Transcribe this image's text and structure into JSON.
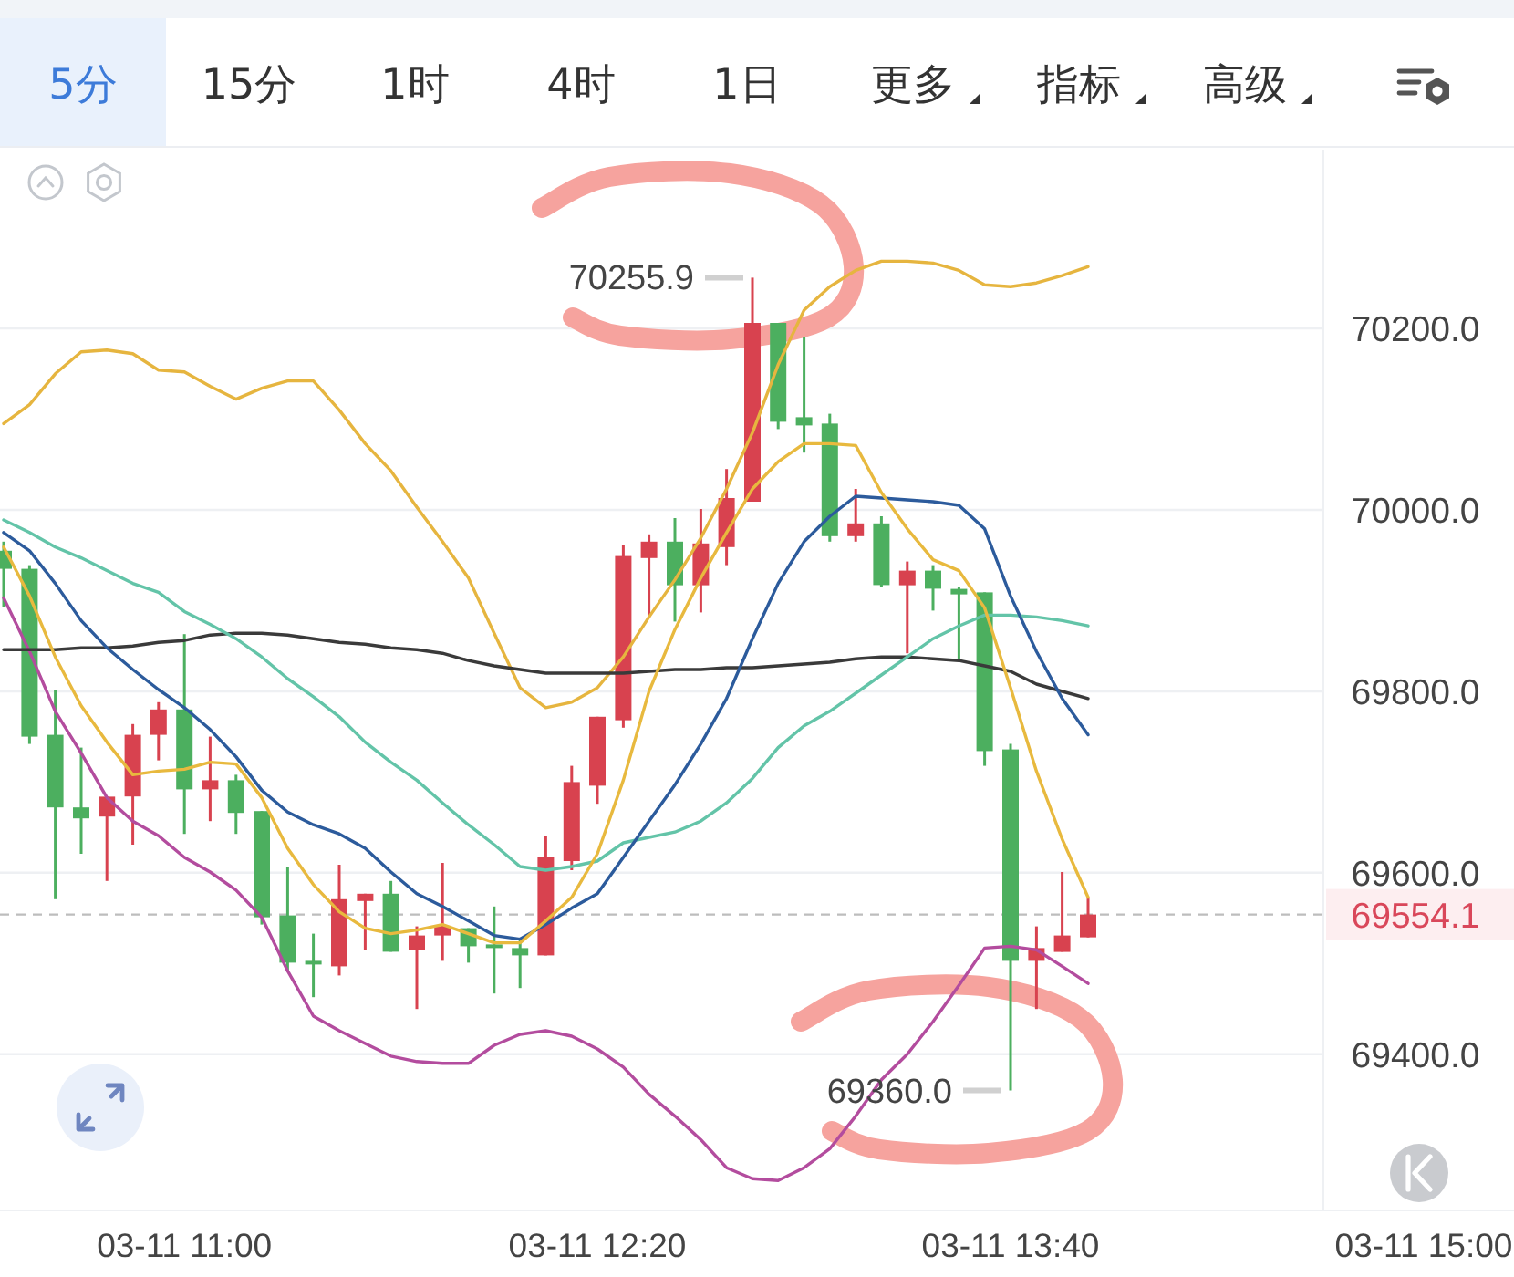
{
  "chart_data": [
    {
      "type": "other",
      "annotations": [
        "5分",
        "15分",
        "1时",
        "4时",
        "1日",
        "更多",
        "指标",
        "高级"
      ]
    },
    {
      "type": "candlestick",
      "categories": [
        null,
        null,
        null,
        null,
        null,
        null,
        null,
        "03-11 11:00",
        null,
        null,
        null,
        null,
        null,
        null,
        null,
        null,
        null,
        null,
        null,
        null,
        null,
        null,
        null,
        "03-11 12:20",
        null,
        null,
        null,
        null,
        null,
        null,
        null,
        null,
        null,
        null,
        null,
        null,
        null,
        null,
        null,
        "03-11 13:40",
        null,
        null,
        null,
        null,
        null,
        null,
        null,
        null,
        null,
        null,
        null,
        null,
        null,
        null,
        null,
        "03-11 15:00",
        null,
        null,
        null
      ],
      "ohlc": [
        [
          69955,
          69965,
          69893,
          69935
        ],
        [
          69935,
          69939,
          69742,
          69750
        ],
        [
          69752,
          69802,
          69571,
          69672
        ],
        [
          69672,
          69738,
          69621,
          69660
        ],
        [
          69662,
          69684,
          69591,
          69684
        ],
        [
          69684,
          69764,
          69631,
          69752
        ],
        [
          69752,
          69788,
          69724,
          69780
        ],
        [
          69780,
          69863,
          69643,
          69692
        ],
        [
          69692,
          69750,
          69657,
          69702
        ],
        [
          69702,
          69708,
          69643,
          69666
        ],
        [
          69668,
          69668,
          69543,
          69551
        ],
        [
          69553,
          69607,
          69491,
          69501
        ],
        [
          69503,
          69533,
          69463,
          69499
        ],
        [
          69497,
          69609,
          69487,
          69571
        ],
        [
          69569,
          69577,
          69515,
          69577
        ],
        [
          69577,
          69591,
          69513,
          69513
        ],
        [
          69515,
          69541,
          69450,
          69531
        ],
        [
          69531,
          69611,
          69503,
          69541
        ],
        [
          69539,
          69539,
          69501,
          69519
        ],
        [
          69521,
          69563,
          69467,
          69517
        ],
        [
          69517,
          69527,
          69473,
          69509
        ],
        [
          69509,
          69641,
          69509,
          69617
        ],
        [
          69613,
          69718,
          69603,
          69700
        ],
        [
          69696,
          69772,
          69676,
          69772
        ],
        [
          69768,
          69961,
          69760,
          69949
        ],
        [
          69947,
          69973,
          69881,
          69965
        ],
        [
          69965,
          69991,
          69877,
          69917
        ],
        [
          69917,
          70001,
          69887,
          69963
        ],
        [
          69959,
          70045,
          69939,
          70013
        ],
        [
          70009,
          70255.9,
          70009,
          70206
        ],
        [
          70206,
          70206,
          70089,
          70097
        ],
        [
          70102,
          70190,
          70063,
          70093
        ],
        [
          70095,
          70106,
          69965,
          69971
        ],
        [
          69971,
          70023,
          69965,
          69985
        ],
        [
          69985,
          69993,
          69915,
          69917
        ],
        [
          69917,
          69943,
          69842,
          69933
        ],
        [
          69933,
          69939,
          69889,
          69913
        ],
        [
          69913,
          69915,
          69834,
          69907
        ],
        [
          69909,
          69909,
          69718,
          69734
        ],
        [
          69736,
          69742,
          69360.0,
          69503
        ],
        [
          69503,
          69541,
          69450,
          69517
        ],
        [
          69513,
          69601,
          69513,
          69531
        ],
        [
          69529,
          69573,
          69529,
          69554.1
        ],
        null,
        null,
        null,
        null,
        null,
        null,
        null,
        null,
        null,
        null,
        null,
        null,
        null,
        null,
        null,
        null
      ],
      "value_labels": [
        null,
        null,
        null,
        null,
        null,
        null,
        null,
        null,
        null,
        null,
        null,
        null,
        null,
        null,
        null,
        null,
        null,
        null,
        null,
        null,
        null,
        null,
        null,
        null,
        null,
        null,
        null,
        null,
        null,
        "70255.9",
        null,
        null,
        null,
        null,
        null,
        null,
        null,
        null,
        null,
        "69360.0",
        null,
        null,
        null,
        null,
        null,
        null,
        null,
        null,
        null,
        null,
        null,
        null,
        null,
        null,
        null,
        null,
        null,
        null,
        null
      ],
      "colors": [
        "#4caf5f",
        "#4caf5f",
        "#4caf5f",
        "#4caf5f",
        "#d8424f",
        "#d8424f",
        "#d8424f",
        "#4caf5f",
        "#d8424f",
        "#4caf5f",
        "#4caf5f",
        "#4caf5f",
        "#4caf5f",
        "#d8424f",
        "#d8424f",
        "#4caf5f",
        "#d8424f",
        "#d8424f",
        "#4caf5f",
        "#4caf5f",
        "#4caf5f",
        "#d8424f",
        "#d8424f",
        "#d8424f",
        "#d8424f",
        "#d8424f",
        "#4caf5f",
        "#d8424f",
        "#d8424f",
        "#d8424f",
        "#4caf5f",
        "#4caf5f",
        "#4caf5f",
        "#d8424f",
        "#4caf5f",
        "#d8424f",
        "#4caf5f",
        "#4caf5f",
        "#4caf5f",
        "#4caf5f",
        "#d8424f",
        "#d8424f",
        "#d8424f",
        null,
        null,
        null,
        null,
        null,
        null,
        null,
        null,
        null,
        null,
        null,
        null,
        null,
        null,
        null,
        null
      ],
      "series": [
        {
          "type": "line",
          "color": "#e6b53f",
          "values": [
            70095,
            70116,
            70150,
            70174,
            70176,
            70172,
            70154,
            70152,
            70136,
            70122,
            70134,
            70142,
            70142,
            70110,
            70073,
            70043,
            70003,
            69965,
            69925,
            69864,
            69804,
            69782,
            69788,
            69804,
            69838,
            69882,
            69923,
            69969,
            70023,
            70085,
            70160,
            70220,
            70246,
            70264,
            70274,
            70274,
            70272,
            70264,
            70248,
            70246,
            70250,
            70258,
            70268,
            null,
            null,
            null,
            null,
            null,
            null,
            null,
            null,
            null,
            null,
            null,
            null,
            null,
            null,
            null,
            null
          ]
        },
        {
          "type": "line",
          "color": "#b34c9e",
          "values": [
            69903,
            69844,
            69778,
            69732,
            69683,
            69657,
            69641,
            69617,
            69601,
            69581,
            69551,
            69492,
            69442,
            69426,
            69412,
            69398,
            69392,
            69390,
            69390,
            69410,
            69422,
            69426,
            69420,
            69406,
            69386,
            69356,
            69332,
            69306,
            69275,
            69263,
            69261,
            69275,
            69296,
            69332,
            69372,
            69400,
            69436,
            69476,
            69517,
            69519,
            69515,
            69497,
            69478,
            null,
            null,
            null,
            null,
            null,
            null,
            null,
            null,
            null,
            null,
            null,
            null,
            null,
            null,
            null,
            null
          ]
        },
        {
          "type": "line",
          "color": "#3a3a3a",
          "values": [
            69846,
            69846,
            69846,
            69848,
            69848,
            69850,
            69854,
            69856,
            69862,
            69864,
            69864,
            69862,
            69858,
            69854,
            69852,
            69848,
            69846,
            69842,
            69834,
            69828,
            69824,
            69820,
            69820,
            69820,
            69820,
            69822,
            69824,
            69824,
            69826,
            69826,
            69828,
            69830,
            69832,
            69836,
            69838,
            69838,
            69836,
            69834,
            69828,
            69822,
            69808,
            69800,
            69792,
            null,
            null,
            null,
            null,
            null,
            null,
            null,
            null,
            null,
            null,
            null,
            null,
            null,
            null,
            null,
            null
          ]
        },
        {
          "type": "line",
          "color": "#63c4a8",
          "values": [
            69989,
            69975,
            69959,
            69947,
            69933,
            69919,
            69909,
            69888,
            69874,
            69858,
            69838,
            69814,
            69794,
            69772,
            69744,
            69722,
            69702,
            69677,
            69653,
            69631,
            69607,
            69603,
            69607,
            69613,
            69633,
            69639,
            69645,
            69657,
            69677,
            69704,
            69738,
            69762,
            69778,
            69798,
            69818,
            69838,
            69858,
            69872,
            69884,
            69884,
            69882,
            69878,
            69872,
            null,
            null,
            null,
            null,
            null,
            null,
            null,
            null,
            null,
            null,
            null,
            null,
            null,
            null,
            null,
            null
          ]
        },
        {
          "type": "line",
          "color": "#2c5b9c",
          "values": [
            69975,
            69955,
            69919,
            69878,
            69848,
            69824,
            69802,
            69782,
            69758,
            69728,
            69691,
            69667,
            69653,
            69643,
            69627,
            69601,
            69577,
            69563,
            69547,
            69531,
            69527,
            69543,
            69561,
            69577,
            69617,
            69657,
            69697,
            69742,
            69792,
            69858,
            69919,
            69965,
            69993,
            70015,
            70013,
            70011,
            70009,
            70005,
            69979,
            69905,
            69844,
            69792,
            69752,
            null,
            null,
            null,
            null,
            null,
            null,
            null,
            null,
            null,
            null,
            null,
            null,
            null,
            null,
            null,
            null
          ]
        },
        {
          "type": "line",
          "color": "#e8b93e",
          "values": [
            69959,
            69905,
            69838,
            69784,
            69744,
            69708,
            69712,
            69714,
            69722,
            69720,
            69683,
            69627,
            69587,
            69557,
            69539,
            69533,
            69537,
            69543,
            69533,
            69523,
            69523,
            69547,
            69573,
            69621,
            69702,
            69800,
            69868,
            69925,
            69975,
            70023,
            70053,
            70073,
            70073,
            70071,
            70019,
            69979,
            69945,
            69933,
            69892,
            69804,
            69712,
            69637,
            69573,
            null,
            null,
            null,
            null,
            null,
            null,
            null,
            null,
            null,
            null,
            null,
            null,
            null,
            null,
            null,
            null
          ]
        }
      ],
      "ylim": [
        69231,
        70397
      ],
      "yticks": [
        {
          "value": 69400,
          "label": "69400.0"
        },
        {
          "value": 69600,
          "label": "69600.0"
        },
        {
          "value": 69800,
          "label": "69800.0"
        },
        {
          "value": 70000,
          "label": "70000.0"
        },
        {
          "value": 70200,
          "label": "70200.0"
        }
      ],
      "grid": "y",
      "ref_lines": [
        {
          "axis": "y",
          "value": 69554.1,
          "label": "69554.1",
          "line_style": "dashed"
        }
      ]
    }
  ]
}
